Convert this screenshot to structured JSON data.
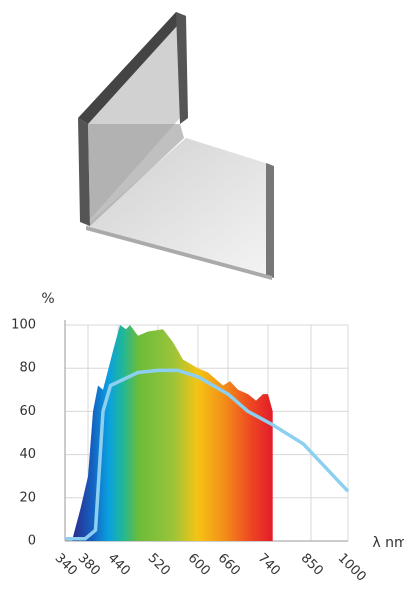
{
  "chart_data": {
    "type": "line",
    "x_label": "λ nm",
    "y_label": "%",
    "xlim": [
      340,
      1000
    ],
    "xticks": [
      340,
      380,
      440,
      520,
      600,
      660,
      740,
      850,
      1000
    ],
    "ylim": [
      0,
      100
    ],
    "yticks": [
      0,
      20,
      40,
      60,
      80,
      100
    ],
    "grid": true,
    "series": [
      {
        "kind": "area",
        "x": [
          353,
          367,
          380,
          390,
          400,
          410,
          430,
          444,
          456,
          464,
          480,
          500,
          530,
          550,
          560,
          570,
          600,
          620,
          650,
          664,
          680,
          700,
          716,
          730,
          740,
          752
        ],
        "values": [
          1,
          15,
          30,
          60,
          72,
          70,
          88,
          100,
          98,
          100,
          95,
          97,
          98,
          92,
          88,
          84,
          80,
          78,
          72,
          74,
          70,
          68,
          65,
          68,
          68,
          60
        ]
      },
      {
        "kind": "line",
        "color": "#8dcff0",
        "x": [
          340,
          375,
          395,
          410,
          425,
          480,
          520,
          560,
          600,
          660,
          700,
          750,
          830,
          1000
        ],
        "values": [
          1,
          1,
          5,
          60,
          72,
          78,
          79,
          79,
          76,
          68,
          60,
          54,
          45,
          23
        ]
      }
    ]
  }
}
